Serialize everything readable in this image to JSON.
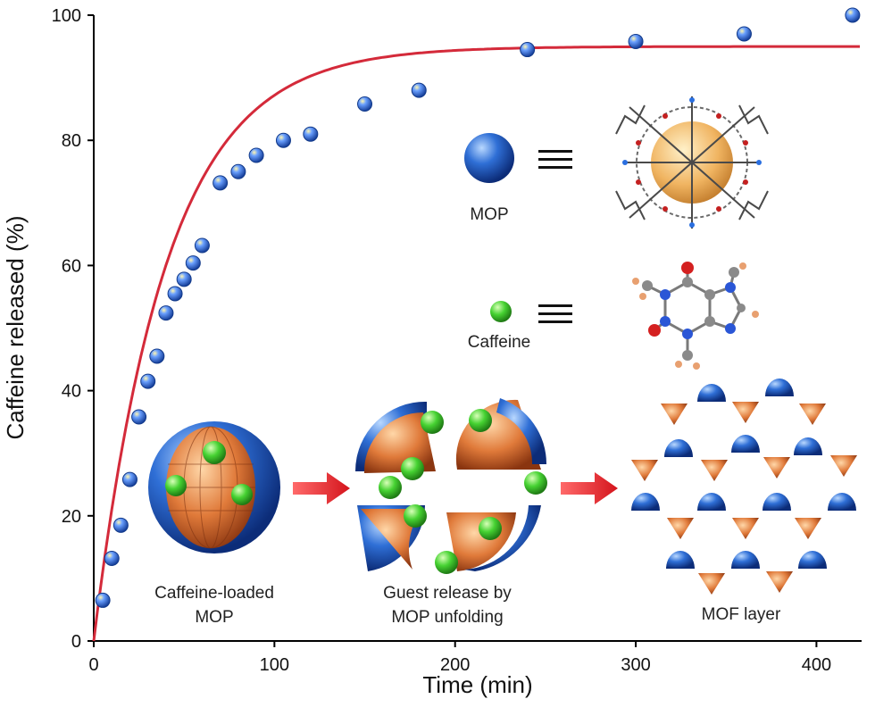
{
  "chart_data": {
    "type": "scatter",
    "title": "",
    "xlabel": "Time (min)",
    "ylabel": "Caffeine released (%)",
    "xlim": [
      0,
      425
    ],
    "ylim": [
      0,
      100
    ],
    "xticks": [
      0,
      100,
      200,
      300,
      400
    ],
    "yticks": [
      0,
      20,
      40,
      60,
      80,
      100
    ],
    "grid": false,
    "series": [
      {
        "kind": "points",
        "x": [
          5,
          10,
          15,
          20,
          25,
          30,
          35,
          40,
          45,
          50,
          55,
          60,
          70,
          80,
          90,
          105,
          120,
          150,
          180,
          240,
          300,
          360,
          420
        ],
        "y": [
          6.5,
          13.2,
          18.5,
          25.8,
          35.8,
          41.5,
          45.5,
          52.4,
          55.5,
          57.8,
          60.4,
          63.2,
          73.2,
          75.0,
          77.6,
          80.0,
          81.0,
          85.8,
          88.0,
          94.5,
          95.8,
          97.0,
          100.0
        ]
      },
      {
        "kind": "fit",
        "model": "first-order",
        "plateau": 95,
        "rate": 0.025
      }
    ],
    "colors": {
      "point": "#2f6fd6",
      "fit_line": "#d42a3a",
      "mop": "#2a6fe0",
      "caffeine": "#46d232",
      "cage": "#e07a3a",
      "arrow": "#e0222a"
    }
  },
  "annotations": {
    "mop": "MOP",
    "caffeine": "Caffeine",
    "equiv": "≡",
    "loaded_line1": "Caffeine-loaded",
    "loaded_line2": "MOP",
    "release_line1": "Guest release by",
    "release_line2": "MOP unfolding",
    "mof": "MOF layer"
  },
  "icons": [
    "mop-sphere-icon",
    "caffeine-ball-icon",
    "mop-structure-icon",
    "caffeine-molecule-icon",
    "loaded-mop-icon",
    "unfolding-mop-icon",
    "mof-layer-icon",
    "arrow-icon"
  ]
}
